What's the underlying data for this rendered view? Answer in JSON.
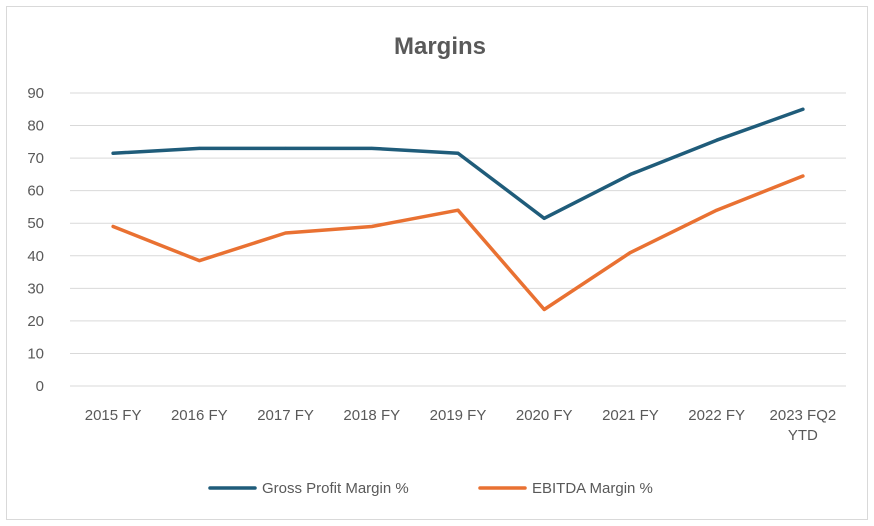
{
  "chart_data": {
    "type": "line",
    "title": "Margins",
    "xlabel": "",
    "ylabel": "",
    "ylim": [
      0,
      90
    ],
    "yticks": [
      0,
      10,
      20,
      30,
      40,
      50,
      60,
      70,
      80,
      90
    ],
    "grid": true,
    "legend_position": "bottom",
    "categories": [
      [
        "2015 FY"
      ],
      [
        "2016 FY"
      ],
      [
        "2017 FY"
      ],
      [
        "2018 FY"
      ],
      [
        "2019 FY"
      ],
      [
        "2020 FY"
      ],
      [
        "2021 FY"
      ],
      [
        "2022 FY"
      ],
      [
        "2023 FQ2",
        "YTD"
      ]
    ],
    "series": [
      {
        "name": "Gross Profit Margin %",
        "color": "#1f5c7a",
        "values": [
          71.5,
          73,
          73,
          73,
          71.5,
          51.5,
          65,
          75.5,
          85
        ]
      },
      {
        "name": "EBITDA Margin %",
        "color": "#e97132",
        "values": [
          49,
          38.5,
          47,
          49,
          54,
          23.5,
          41,
          54,
          64.5
        ]
      }
    ]
  }
}
